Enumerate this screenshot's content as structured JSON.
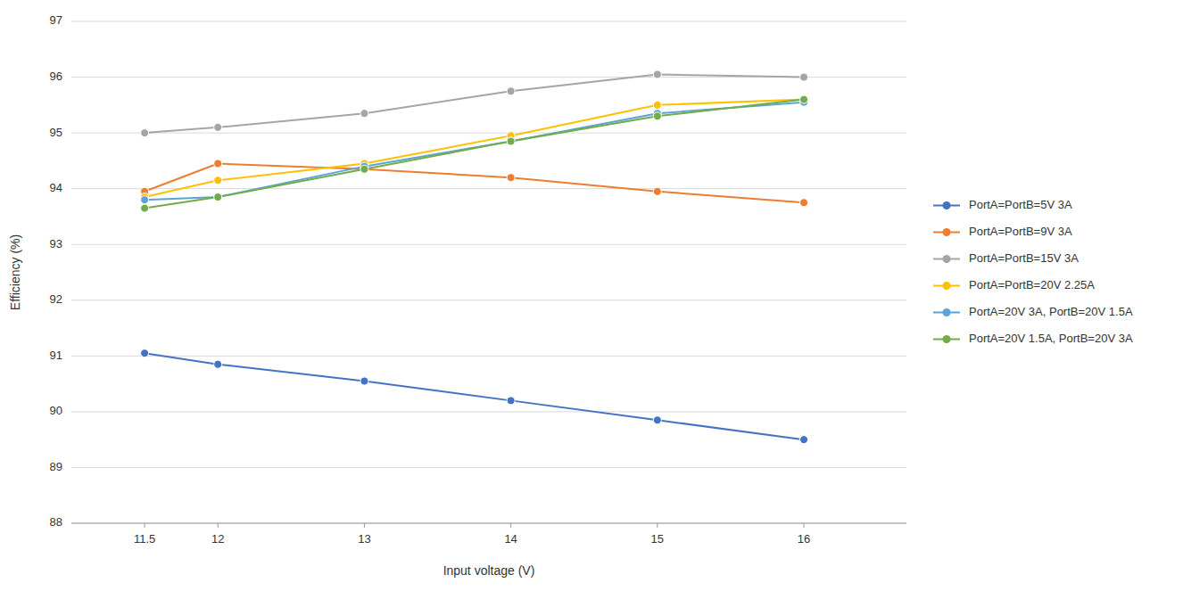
{
  "chart_data": {
    "type": "line",
    "x": [
      11.5,
      12,
      13,
      14,
      15,
      16
    ],
    "xlim": [
      11.0,
      16.7
    ],
    "xticks": [
      11.5,
      12,
      13,
      14,
      15,
      16
    ],
    "ylim": [
      88,
      97
    ],
    "yticks": [
      88,
      89,
      90,
      91,
      92,
      93,
      94,
      95,
      96,
      97
    ],
    "xlabel": "Input voltage (V)",
    "ylabel": "Efficiency (%)",
    "grid": "y",
    "legend": "right",
    "series": [
      {
        "name": "PortA=PortB=5V 3A",
        "color": "#4472C4",
        "marker": "circle",
        "values": [
          91.05,
          90.85,
          90.55,
          90.2,
          89.85,
          89.5
        ]
      },
      {
        "name": "PortA=PortB=9V 3A",
        "color": "#ED7D31",
        "marker": "circle",
        "values": [
          93.95,
          94.45,
          94.35,
          94.2,
          93.95,
          93.75
        ]
      },
      {
        "name": "PortA=PortB=15V 3A",
        "color": "#A5A5A5",
        "marker": "circle",
        "values": [
          95.0,
          95.1,
          95.35,
          95.75,
          96.05,
          96.0
        ]
      },
      {
        "name": "PortA=PortB=20V 2.25A",
        "color": "#FFC000",
        "marker": "circle",
        "values": [
          93.85,
          94.15,
          94.45,
          94.95,
          95.5,
          95.6
        ]
      },
      {
        "name": "PortA=20V 3A, PortB=20V 1.5A",
        "color": "#5BA3D9",
        "marker": "circle",
        "values": [
          93.8,
          93.85,
          94.4,
          94.85,
          95.35,
          95.55
        ]
      },
      {
        "name": "PortA=20V 1.5A, PortB=20V 3A",
        "color": "#70AD47",
        "marker": "circle",
        "values": [
          93.65,
          93.85,
          94.35,
          94.85,
          95.3,
          95.6
        ]
      }
    ]
  }
}
